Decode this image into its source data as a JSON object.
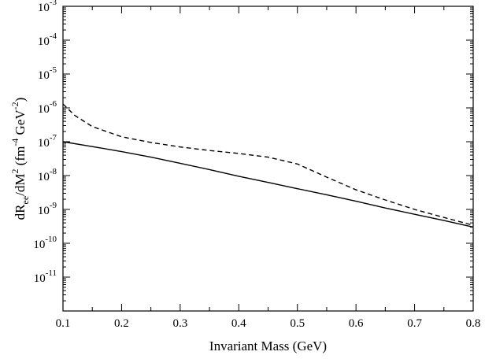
{
  "chart_data": {
    "type": "line",
    "title": "",
    "xlabel": "Invariant Mass (GeV)",
    "ylabel": {
      "base": "dR",
      "sub": "ee",
      "mid": "/dM",
      "sup2": "2",
      "open": " (fm",
      "supfm": "-4",
      "gev": " GeV",
      "supgev": "-2",
      "close": ")"
    },
    "x_scale": "linear",
    "y_scale": "log",
    "xlim": [
      0.1,
      0.8
    ],
    "ylim": [
      1e-12,
      0.001
    ],
    "x_ticks": [
      {
        "value": 0.1,
        "label": "0.1"
      },
      {
        "value": 0.2,
        "label": "0.2"
      },
      {
        "value": 0.3,
        "label": "0.3"
      },
      {
        "value": 0.4,
        "label": "0.4"
      },
      {
        "value": 0.5,
        "label": "0.5"
      },
      {
        "value": 0.6,
        "label": "0.6"
      },
      {
        "value": 0.7,
        "label": "0.7"
      },
      {
        "value": 0.8,
        "label": "0.8"
      }
    ],
    "y_ticks": [
      {
        "exp": -11,
        "base": "10",
        "sup": "-11"
      },
      {
        "exp": -10,
        "base": "10",
        "sup": "-10"
      },
      {
        "exp": -9,
        "base": "10",
        "sup": "-9"
      },
      {
        "exp": -8,
        "base": "10",
        "sup": "-8"
      },
      {
        "exp": -7,
        "base": "10",
        "sup": "-7"
      },
      {
        "exp": -6,
        "base": "10",
        "sup": "-6"
      },
      {
        "exp": -5,
        "base": "10",
        "sup": "-5"
      },
      {
        "exp": -4,
        "base": "10",
        "sup": "-4"
      },
      {
        "exp": -3,
        "base": "10",
        "sup": "-3"
      }
    ],
    "grid": false,
    "legend": "none",
    "series": [
      {
        "style": "solid",
        "color": "#000000",
        "x": [
          0.1,
          0.15,
          0.2,
          0.25,
          0.3,
          0.35,
          0.4,
          0.45,
          0.5,
          0.55,
          0.6,
          0.65,
          0.7,
          0.75,
          0.8
        ],
        "y": [
          1e-07,
          7.2e-08,
          5.1e-08,
          3.5e-08,
          2.3e-08,
          1.5e-08,
          9.5e-09,
          6.3e-09,
          4.1e-09,
          2.7e-09,
          1.75e-09,
          1.1e-09,
          7.2e-10,
          4.7e-10,
          3e-10
        ]
      },
      {
        "style": "dashed",
        "color": "#000000",
        "x": [
          0.1,
          0.12,
          0.15,
          0.2,
          0.25,
          0.3,
          0.35,
          0.4,
          0.45,
          0.5,
          0.55,
          0.6,
          0.65,
          0.7,
          0.75,
          0.8
        ],
        "y": [
          1.3e-06,
          6e-07,
          2.8e-07,
          1.4e-07,
          9.5e-08,
          7e-08,
          5.5e-08,
          4.5e-08,
          3.5e-08,
          2.2e-08,
          9e-09,
          3.8e-09,
          1.9e-09,
          1e-09,
          5.8e-10,
          3.4e-10
        ]
      }
    ]
  }
}
